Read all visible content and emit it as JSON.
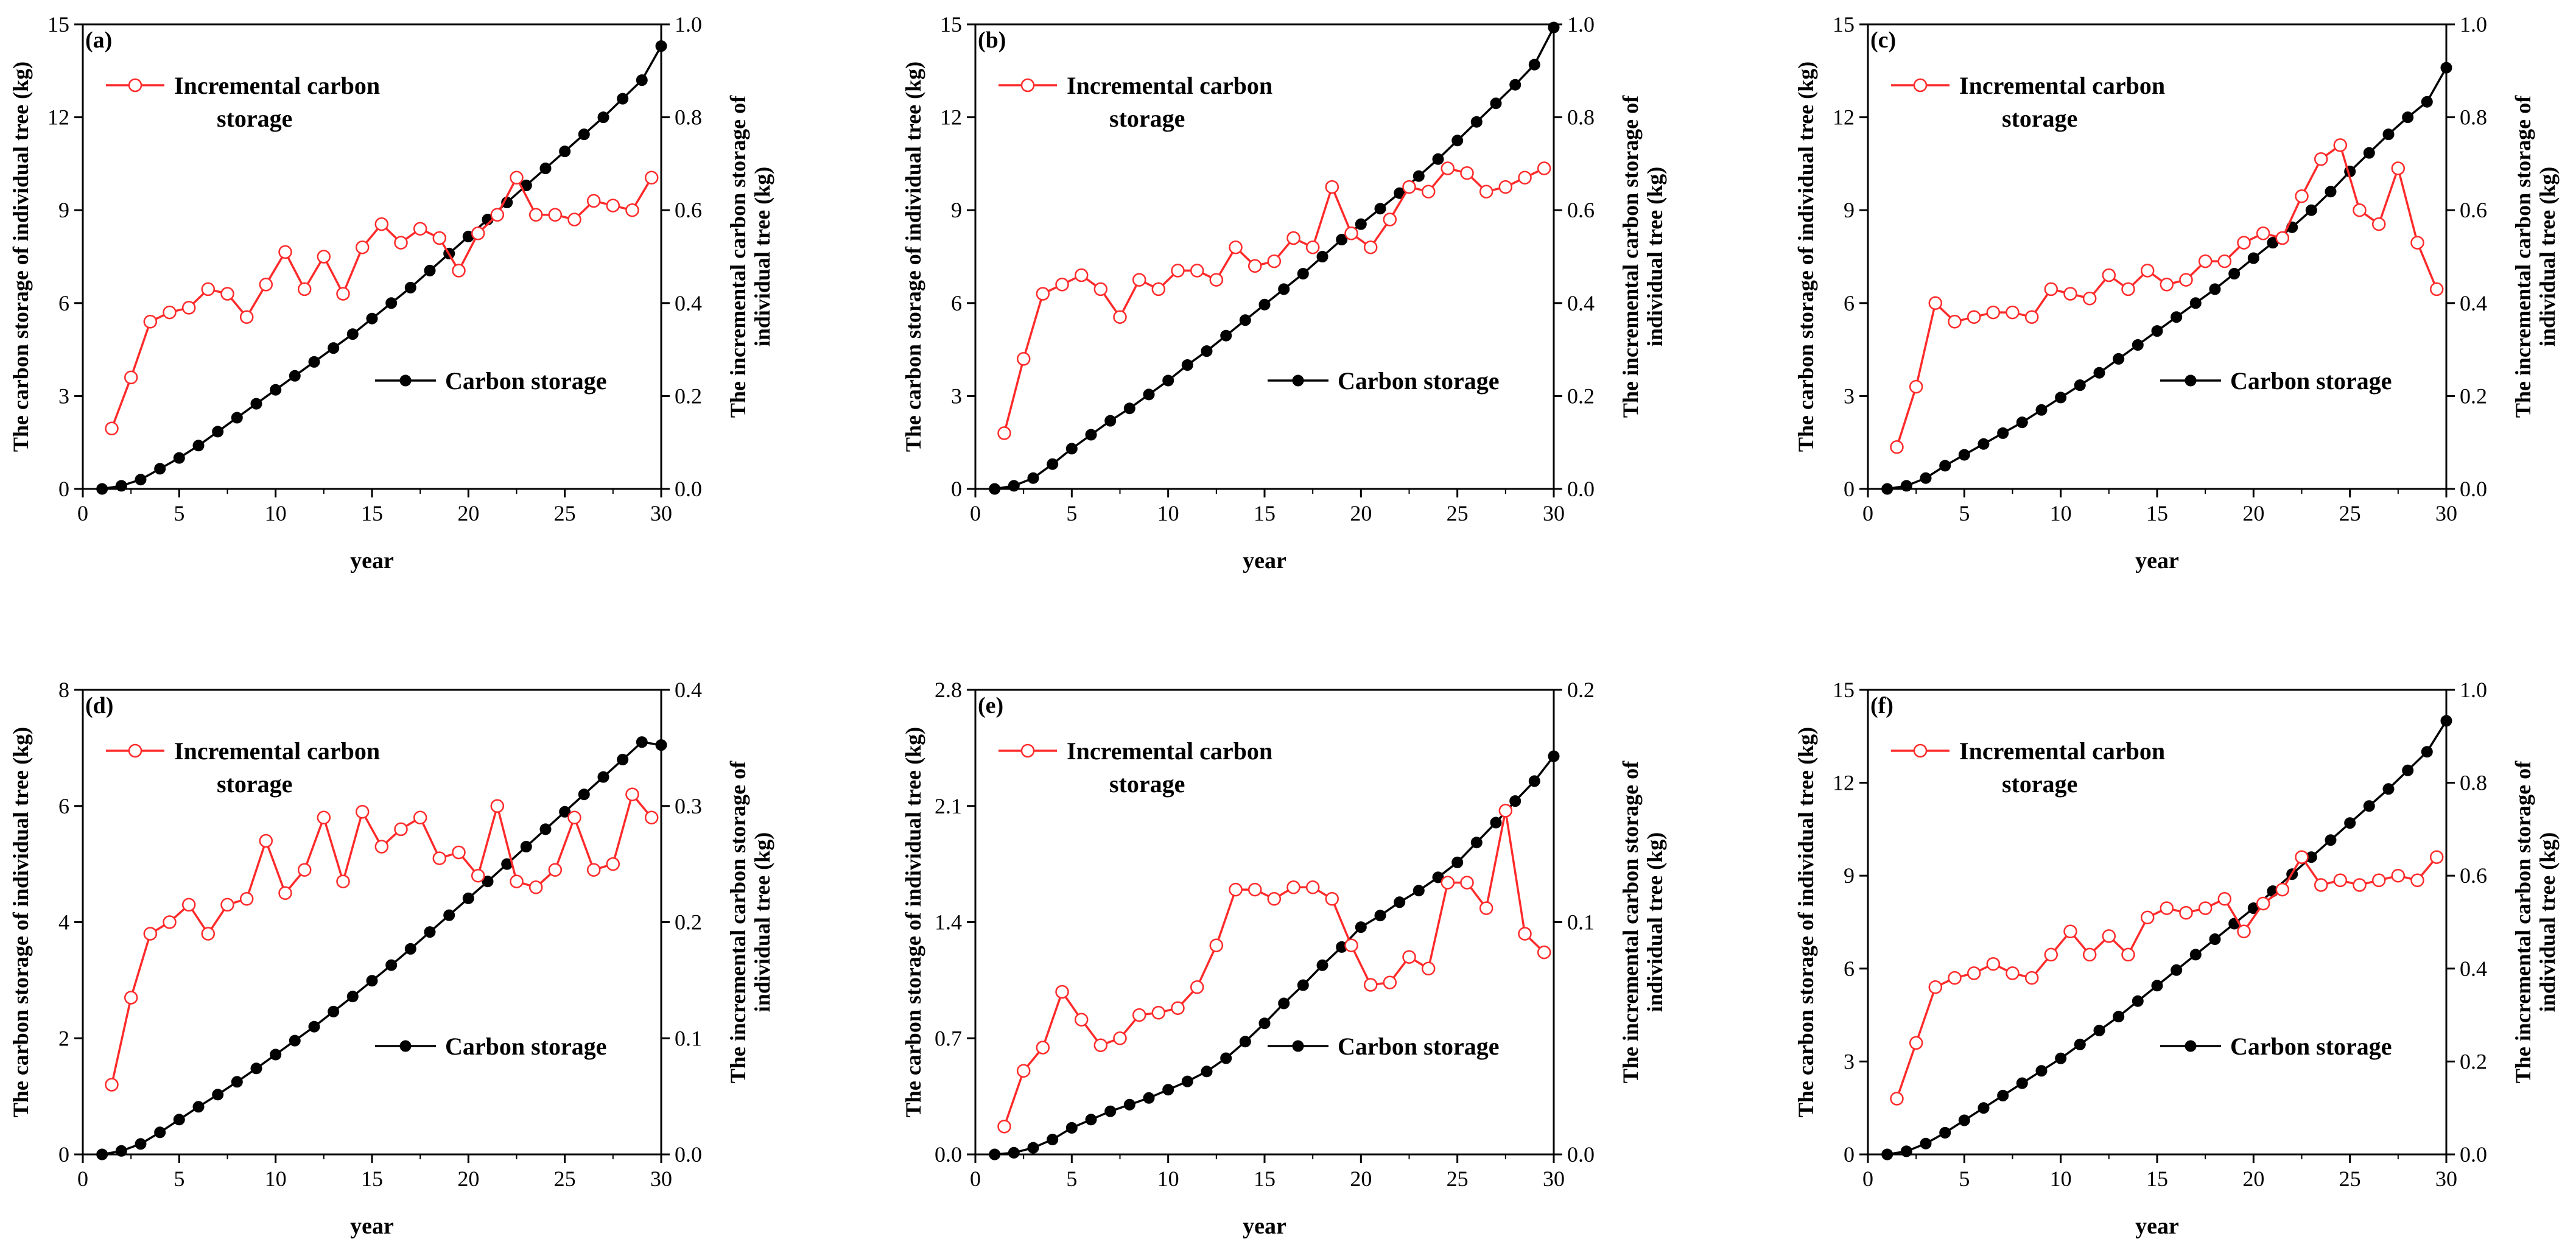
{
  "figure": {
    "common": {
      "xlabel": "year",
      "y1label": "The carbon storage of individual tree (kg)",
      "y2label_line1": "The incremental carbon storage of",
      "y2label_line2": "individual tree (kg)",
      "legend_incremental_line1": "Incremental carbon",
      "legend_incremental_line2": "storage",
      "legend_cumulative": "Carbon storage",
      "incremental_color": "#ff2a2a",
      "cumulative_color": "#000000"
    }
  },
  "chart_data": [
    {
      "panel": "(a)",
      "type": "line",
      "xlim": [
        0,
        30
      ],
      "xticks": [
        0,
        5,
        10,
        15,
        20,
        25,
        30
      ],
      "ylim": [
        0,
        15
      ],
      "yticks": [
        0,
        3,
        6,
        9,
        12,
        15
      ],
      "y2lim": [
        0,
        1.0
      ],
      "y2ticks": [
        0.0,
        0.2,
        0.4,
        0.6,
        0.8,
        1.0
      ],
      "series": [
        {
          "name": "Carbon storage",
          "axis": "left",
          "x": [
            1,
            2,
            3,
            4,
            5,
            6,
            7,
            8,
            9,
            10,
            11,
            12,
            13,
            14,
            15,
            16,
            17,
            18,
            19,
            20,
            21,
            22,
            23,
            24,
            25,
            26,
            27,
            28,
            29,
            30
          ],
          "values": [
            0,
            0.1,
            0.3,
            0.65,
            1.0,
            1.4,
            1.85,
            2.3,
            2.75,
            3.2,
            3.65,
            4.1,
            4.55,
            5.0,
            5.5,
            6.0,
            6.5,
            7.05,
            7.6,
            8.15,
            8.7,
            9.25,
            9.8,
            10.35,
            10.9,
            11.45,
            12.0,
            12.6,
            13.2,
            14.3
          ]
        },
        {
          "name": "Incremental carbon storage",
          "axis": "right",
          "x": [
            1.5,
            2.5,
            3.5,
            4.5,
            5.5,
            6.5,
            7.5,
            8.5,
            9.5,
            10.5,
            11.5,
            12.5,
            13.5,
            14.5,
            15.5,
            16.5,
            17.5,
            18.5,
            19.5,
            20.5,
            21.5,
            22.5,
            23.5,
            24.5,
            25.5,
            26.5,
            27.5,
            28.5,
            29.5
          ],
          "values": [
            0.13,
            0.24,
            0.36,
            0.38,
            0.39,
            0.43,
            0.42,
            0.37,
            0.44,
            0.51,
            0.43,
            0.5,
            0.42,
            0.52,
            0.57,
            0.53,
            0.56,
            0.54,
            0.47,
            0.55,
            0.59,
            0.67,
            0.59,
            0.59,
            0.58,
            0.62,
            0.61,
            0.6,
            0.67
          ]
        }
      ]
    },
    {
      "panel": "(b)",
      "type": "line",
      "xlim": [
        0,
        30
      ],
      "xticks": [
        0,
        5,
        10,
        15,
        20,
        25,
        30
      ],
      "ylim": [
        0,
        15
      ],
      "yticks": [
        0,
        3,
        6,
        9,
        12,
        15
      ],
      "y2lim": [
        0,
        1.0
      ],
      "y2ticks": [
        0.0,
        0.2,
        0.4,
        0.6,
        0.8,
        1.0
      ],
      "series": [
        {
          "name": "Carbon storage",
          "axis": "left",
          "x": [
            1,
            2,
            3,
            4,
            5,
            6,
            7,
            8,
            9,
            10,
            11,
            12,
            13,
            14,
            15,
            16,
            17,
            18,
            19,
            20,
            21,
            22,
            23,
            24,
            25,
            26,
            27,
            28,
            29,
            30
          ],
          "values": [
            0,
            0.1,
            0.35,
            0.8,
            1.3,
            1.75,
            2.2,
            2.6,
            3.05,
            3.5,
            4.0,
            4.45,
            4.95,
            5.45,
            5.95,
            6.45,
            6.95,
            7.5,
            8.05,
            8.55,
            9.05,
            9.55,
            10.1,
            10.65,
            11.25,
            11.85,
            12.45,
            13.05,
            13.7,
            14.9
          ]
        },
        {
          "name": "Incremental carbon storage",
          "axis": "right",
          "x": [
            1.5,
            2.5,
            3.5,
            4.5,
            5.5,
            6.5,
            7.5,
            8.5,
            9.5,
            10.5,
            11.5,
            12.5,
            13.5,
            14.5,
            15.5,
            16.5,
            17.5,
            18.5,
            19.5,
            20.5,
            21.5,
            22.5,
            23.5,
            24.5,
            25.5,
            26.5,
            27.5,
            28.5,
            29.5
          ],
          "values": [
            0.12,
            0.28,
            0.42,
            0.44,
            0.46,
            0.43,
            0.37,
            0.45,
            0.43,
            0.47,
            0.47,
            0.45,
            0.52,
            0.48,
            0.49,
            0.54,
            0.52,
            0.65,
            0.55,
            0.52,
            0.58,
            0.65,
            0.64,
            0.69,
            0.68,
            0.64,
            0.65,
            0.67,
            0.69
          ]
        }
      ]
    },
    {
      "panel": "(c)",
      "type": "line",
      "xlim": [
        0,
        30
      ],
      "xticks": [
        0,
        5,
        10,
        15,
        20,
        25,
        30
      ],
      "ylim": [
        0,
        15
      ],
      "yticks": [
        0,
        3,
        6,
        9,
        12,
        15
      ],
      "y2lim": [
        0,
        1.0
      ],
      "y2ticks": [
        0.0,
        0.2,
        0.4,
        0.6,
        0.8,
        1.0
      ],
      "series": [
        {
          "name": "Carbon storage",
          "axis": "left",
          "x": [
            1,
            2,
            3,
            4,
            5,
            6,
            7,
            8,
            9,
            10,
            11,
            12,
            13,
            14,
            15,
            16,
            17,
            18,
            19,
            20,
            21,
            22,
            23,
            24,
            25,
            26,
            27,
            28,
            29,
            30
          ],
          "values": [
            0,
            0.1,
            0.35,
            0.75,
            1.1,
            1.45,
            1.8,
            2.15,
            2.55,
            2.95,
            3.35,
            3.75,
            4.2,
            4.65,
            5.1,
            5.55,
            6.0,
            6.45,
            6.95,
            7.45,
            7.95,
            8.45,
            9.0,
            9.6,
            10.25,
            10.85,
            11.45,
            12.0,
            12.5,
            13.6
          ]
        },
        {
          "name": "Incremental carbon storage",
          "axis": "right",
          "x": [
            1.5,
            2.5,
            3.5,
            4.5,
            5.5,
            6.5,
            7.5,
            8.5,
            9.5,
            10.5,
            11.5,
            12.5,
            13.5,
            14.5,
            15.5,
            16.5,
            17.5,
            18.5,
            19.5,
            20.5,
            21.5,
            22.5,
            23.5,
            24.5,
            25.5,
            26.5,
            27.5,
            28.5,
            29.5
          ],
          "values": [
            0.09,
            0.22,
            0.4,
            0.36,
            0.37,
            0.38,
            0.38,
            0.37,
            0.43,
            0.42,
            0.41,
            0.46,
            0.43,
            0.47,
            0.44,
            0.45,
            0.49,
            0.49,
            0.53,
            0.55,
            0.54,
            0.63,
            0.71,
            0.74,
            0.6,
            0.57,
            0.69,
            0.53,
            0.43
          ]
        }
      ]
    },
    {
      "panel": "(d)",
      "type": "line",
      "xlim": [
        0,
        30
      ],
      "xticks": [
        0,
        5,
        10,
        15,
        20,
        25,
        30
      ],
      "ylim": [
        0,
        8
      ],
      "yticks": [
        0,
        2,
        4,
        6,
        8
      ],
      "y2lim": [
        0,
        0.4
      ],
      "y2ticks": [
        0.0,
        0.1,
        0.2,
        0.3,
        0.4
      ],
      "series": [
        {
          "name": "Carbon storage",
          "axis": "left",
          "x": [
            1,
            2,
            3,
            4,
            5,
            6,
            7,
            8,
            9,
            10,
            11,
            12,
            13,
            14,
            15,
            16,
            17,
            18,
            19,
            20,
            21,
            22,
            23,
            24,
            25,
            26,
            27,
            28,
            29,
            30
          ],
          "values": [
            0,
            0.06,
            0.18,
            0.38,
            0.6,
            0.82,
            1.03,
            1.25,
            1.48,
            1.72,
            1.96,
            2.2,
            2.46,
            2.72,
            2.99,
            3.26,
            3.54,
            3.83,
            4.12,
            4.41,
            4.7,
            5.0,
            5.3,
            5.6,
            5.9,
            6.2,
            6.5,
            6.8,
            7.1,
            7.05
          ]
        },
        {
          "name": "Incremental carbon storage",
          "axis": "right",
          "x": [
            1.5,
            2.5,
            3.5,
            4.5,
            5.5,
            6.5,
            7.5,
            8.5,
            9.5,
            10.5,
            11.5,
            12.5,
            13.5,
            14.5,
            15.5,
            16.5,
            17.5,
            18.5,
            19.5,
            20.5,
            21.5,
            22.5,
            23.5,
            24.5,
            25.5,
            26.5,
            27.5,
            28.5,
            29.5
          ],
          "values": [
            0.06,
            0.135,
            0.19,
            0.2,
            0.215,
            0.19,
            0.215,
            0.22,
            0.27,
            0.225,
            0.245,
            0.29,
            0.235,
            0.295,
            0.265,
            0.28,
            0.29,
            0.255,
            0.26,
            0.24,
            0.3,
            0.235,
            0.23,
            0.245,
            0.29,
            0.245,
            0.25,
            0.31,
            0.29
          ]
        }
      ]
    },
    {
      "panel": "(e)",
      "type": "line",
      "xlim": [
        0,
        30
      ],
      "xticks": [
        0,
        5,
        10,
        15,
        20,
        25,
        30
      ],
      "ylim": [
        0,
        2.8
      ],
      "yticks": [
        0.0,
        0.7,
        1.4,
        2.1,
        2.8
      ],
      "y2lim": [
        0,
        0.2
      ],
      "y2ticks": [
        0.0,
        0.1,
        0.2
      ],
      "series": [
        {
          "name": "Carbon storage",
          "axis": "left",
          "x": [
            1,
            2,
            3,
            4,
            5,
            6,
            7,
            8,
            9,
            10,
            11,
            12,
            13,
            14,
            15,
            16,
            17,
            18,
            19,
            20,
            21,
            22,
            23,
            24,
            25,
            26,
            27,
            28,
            29,
            30
          ],
          "values": [
            0,
            0.01,
            0.04,
            0.09,
            0.16,
            0.21,
            0.26,
            0.3,
            0.34,
            0.39,
            0.44,
            0.5,
            0.58,
            0.68,
            0.79,
            0.91,
            1.02,
            1.14,
            1.25,
            1.37,
            1.44,
            1.52,
            1.59,
            1.67,
            1.76,
            1.88,
            2.0,
            2.13,
            2.25,
            2.4
          ]
        },
        {
          "name": "Incremental carbon storage",
          "axis": "right",
          "x": [
            1.5,
            2.5,
            3.5,
            4.5,
            5.5,
            6.5,
            7.5,
            8.5,
            9.5,
            10.5,
            11.5,
            12.5,
            13.5,
            14.5,
            15.5,
            16.5,
            17.5,
            18.5,
            19.5,
            20.5,
            21.5,
            22.5,
            23.5,
            24.5,
            25.5,
            26.5,
            27.5,
            28.5,
            29.5
          ],
          "values": [
            0.012,
            0.036,
            0.046,
            0.07,
            0.058,
            0.047,
            0.05,
            0.06,
            0.061,
            0.063,
            0.072,
            0.09,
            0.114,
            0.114,
            0.11,
            0.115,
            0.115,
            0.11,
            0.09,
            0.073,
            0.074,
            0.085,
            0.08,
            0.117,
            0.117,
            0.106,
            0.148,
            0.095,
            0.087
          ]
        }
      ]
    },
    {
      "panel": "(f)",
      "type": "line",
      "xlim": [
        0,
        30
      ],
      "xticks": [
        0,
        5,
        10,
        15,
        20,
        25,
        30
      ],
      "ylim": [
        0,
        15
      ],
      "yticks": [
        0,
        3,
        6,
        9,
        12,
        15
      ],
      "y2lim": [
        0,
        1.0
      ],
      "y2ticks": [
        0.0,
        0.2,
        0.4,
        0.6,
        0.8,
        1.0
      ],
      "series": [
        {
          "name": "Carbon storage",
          "axis": "left",
          "x": [
            1,
            2,
            3,
            4,
            5,
            6,
            7,
            8,
            9,
            10,
            11,
            12,
            13,
            14,
            15,
            16,
            17,
            18,
            19,
            20,
            21,
            22,
            23,
            24,
            25,
            26,
            27,
            28,
            29,
            30
          ],
          "values": [
            0,
            0.1,
            0.35,
            0.7,
            1.1,
            1.5,
            1.9,
            2.3,
            2.7,
            3.1,
            3.55,
            4.0,
            4.45,
            4.95,
            5.45,
            5.95,
            6.45,
            6.95,
            7.45,
            7.95,
            8.5,
            9.05,
            9.6,
            10.15,
            10.7,
            11.25,
            11.8,
            12.4,
            13.0,
            14.0
          ]
        },
        {
          "name": "Incremental carbon storage",
          "axis": "right",
          "x": [
            1.5,
            2.5,
            3.5,
            4.5,
            5.5,
            6.5,
            7.5,
            8.5,
            9.5,
            10.5,
            11.5,
            12.5,
            13.5,
            14.5,
            15.5,
            16.5,
            17.5,
            18.5,
            19.5,
            20.5,
            21.5,
            22.5,
            23.5,
            24.5,
            25.5,
            26.5,
            27.5,
            28.5,
            29.5
          ],
          "values": [
            0.12,
            0.24,
            0.36,
            0.38,
            0.39,
            0.41,
            0.39,
            0.38,
            0.43,
            0.48,
            0.43,
            0.47,
            0.43,
            0.51,
            0.53,
            0.52,
            0.53,
            0.55,
            0.48,
            0.54,
            0.57,
            0.64,
            0.58,
            0.59,
            0.58,
            0.59,
            0.6,
            0.59,
            0.64
          ]
        }
      ]
    }
  ]
}
